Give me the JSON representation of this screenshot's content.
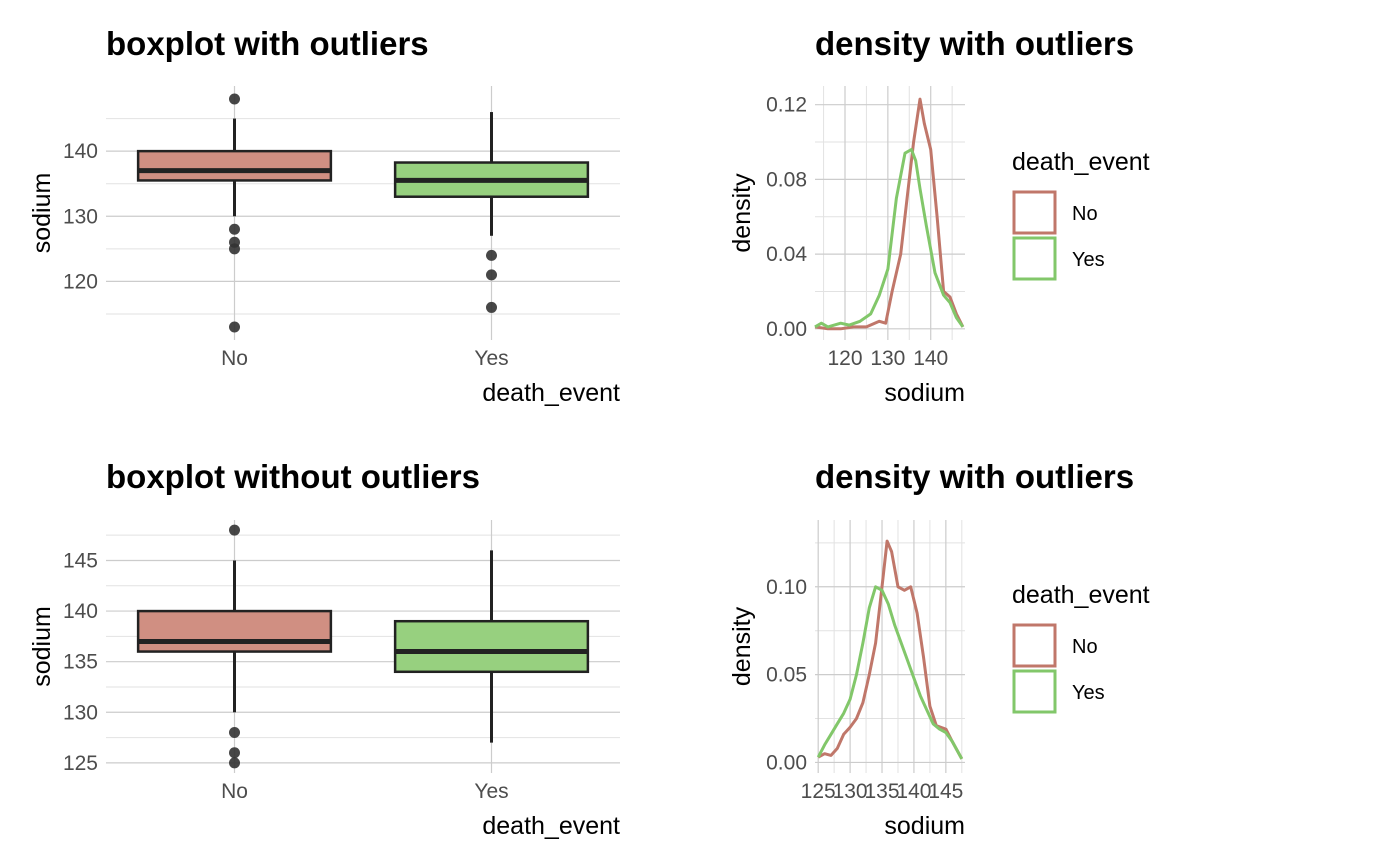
{
  "colors": {
    "no": "#c0776a",
    "yes": "#82c76a",
    "no_fill": "#d08f82",
    "yes_fill": "#97d07f",
    "outlier": "#333333"
  },
  "chart_data": [
    {
      "type": "boxplot",
      "title": "boxplot with outliers",
      "xlabel": "death_event",
      "ylabel": "sodium",
      "categories": [
        "No",
        "Yes"
      ],
      "ylim": [
        111,
        150
      ],
      "yticks": [
        120,
        130,
        140
      ],
      "yminor": [
        115,
        125,
        135,
        145
      ],
      "boxes": [
        {
          "category": "No",
          "whisker_low": 130,
          "q1": 135.5,
          "median": 137,
          "q3": 140,
          "whisker_high": 145,
          "outliers": [
            148,
            128,
            126,
            125,
            113
          ]
        },
        {
          "category": "Yes",
          "whisker_low": 127,
          "q1": 133,
          "median": 135.5,
          "q3": 138.25,
          "whisker_high": 146,
          "outliers": [
            124,
            121,
            116
          ]
        }
      ]
    },
    {
      "type": "line",
      "title": "density with outliers",
      "xlabel": "sodium",
      "ylabel": "density",
      "xlim": [
        113,
        148
      ],
      "ylim": [
        -0.006,
        0.13
      ],
      "xticks": [
        120,
        130,
        140
      ],
      "xminor": [
        115,
        125,
        135,
        145
      ],
      "yticks": [
        0.0,
        0.04,
        0.08,
        0.12
      ],
      "ytick_labels": [
        "0.00",
        "0.04",
        "0.08",
        "0.12"
      ],
      "yminor": [
        0.02,
        0.06,
        0.1
      ],
      "legend": {
        "title": "death_event",
        "entries": [
          "No",
          "Yes"
        ],
        "position": "right"
      },
      "series": [
        {
          "name": "No",
          "x": [
            113,
            116,
            119,
            122,
            125,
            128,
            129.5,
            131,
            133,
            134.5,
            136,
            137.5,
            138.5,
            140,
            141.5,
            143,
            144.5,
            146,
            147.5
          ],
          "y": [
            0.001,
            0.0,
            0.0,
            0.001,
            0.001,
            0.004,
            0.003,
            0.02,
            0.04,
            0.07,
            0.1,
            0.123,
            0.11,
            0.096,
            0.06,
            0.02,
            0.017,
            0.008,
            0.001
          ]
        },
        {
          "name": "Yes",
          "x": [
            113,
            114.5,
            116,
            117.5,
            119,
            121,
            123.5,
            126,
            128,
            130,
            132,
            134,
            135.5,
            136.5,
            137.5,
            139,
            141,
            143,
            144.5,
            146,
            147.5
          ],
          "y": [
            0.001,
            0.003,
            0.001,
            0.002,
            0.003,
            0.002,
            0.004,
            0.008,
            0.018,
            0.032,
            0.07,
            0.094,
            0.096,
            0.09,
            0.075,
            0.055,
            0.03,
            0.018,
            0.014,
            0.006,
            0.001
          ]
        }
      ]
    },
    {
      "type": "boxplot",
      "title": "boxplot without outliers",
      "xlabel": "death_event",
      "ylabel": "sodium",
      "categories": [
        "No",
        "Yes"
      ],
      "ylim": [
        124,
        149
      ],
      "yticks": [
        125,
        130,
        135,
        140,
        145
      ],
      "yminor": [
        127.5,
        132.5,
        137.5,
        142.5,
        147.5
      ],
      "boxes": [
        {
          "category": "No",
          "whisker_low": 130,
          "q1": 136,
          "median": 137,
          "q3": 140,
          "whisker_high": 145,
          "outliers": [
            148,
            128,
            126,
            125
          ]
        },
        {
          "category": "Yes",
          "whisker_low": 127,
          "q1": 134,
          "median": 136,
          "q3": 139,
          "whisker_high": 146,
          "outliers": []
        }
      ]
    },
    {
      "type": "line",
      "title": "density with outliers",
      "xlabel": "sodium",
      "ylabel": "density",
      "xlim": [
        124.5,
        148
      ],
      "ylim": [
        -0.006,
        0.138
      ],
      "xticks": [
        125,
        130,
        135,
        140,
        145
      ],
      "xminor": [
        127.5,
        132.5,
        137.5,
        142.5,
        147.5
      ],
      "yticks": [
        0.0,
        0.05,
        0.1
      ],
      "ytick_labels": [
        "0.00",
        "0.05",
        "0.10"
      ],
      "yminor": [
        0.025,
        0.075,
        0.125
      ],
      "legend": {
        "title": "death_event",
        "entries": [
          "No",
          "Yes"
        ],
        "position": "right"
      },
      "series": [
        {
          "name": "No",
          "x": [
            125,
            126,
            127,
            128,
            129,
            130,
            131,
            132,
            133,
            134,
            135,
            135.8,
            136.5,
            137.5,
            138.5,
            139.5,
            140.5,
            141.5,
            142.5,
            143.5,
            145,
            146,
            147.5
          ],
          "y": [
            0.003,
            0.005,
            0.004,
            0.008,
            0.016,
            0.02,
            0.025,
            0.034,
            0.05,
            0.068,
            0.1,
            0.126,
            0.12,
            0.1,
            0.098,
            0.1,
            0.085,
            0.06,
            0.032,
            0.021,
            0.019,
            0.012,
            0.002
          ]
        },
        {
          "name": "Yes",
          "x": [
            125,
            126,
            127,
            128,
            129,
            130,
            131,
            132,
            133,
            134,
            135,
            136,
            137,
            138,
            139,
            140,
            141,
            142,
            143,
            144,
            145,
            146,
            147.5
          ],
          "y": [
            0.003,
            0.01,
            0.016,
            0.022,
            0.028,
            0.036,
            0.05,
            0.068,
            0.088,
            0.1,
            0.098,
            0.09,
            0.078,
            0.068,
            0.058,
            0.048,
            0.038,
            0.03,
            0.022,
            0.019,
            0.017,
            0.012,
            0.002
          ]
        }
      ]
    }
  ]
}
